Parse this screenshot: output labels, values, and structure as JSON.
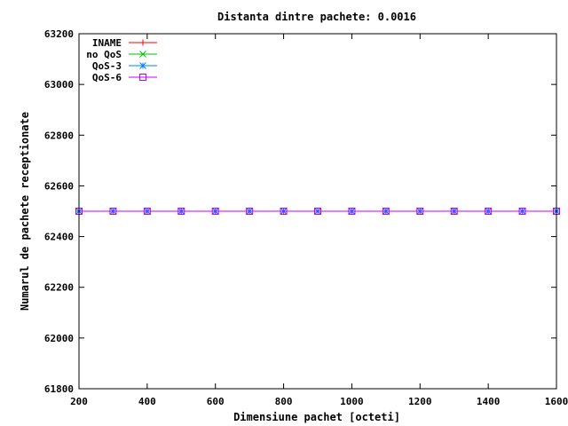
{
  "chart_data": {
    "type": "line",
    "title": "Distanta dintre pachete: 0.0016",
    "xlabel": "Dimensiune pachet [octeti]",
    "ylabel": "Numarul de pachete receptionate",
    "xlim": [
      200,
      1600
    ],
    "ylim": [
      61800,
      63200
    ],
    "xticks": [
      200,
      400,
      600,
      800,
      1000,
      1200,
      1400,
      1600
    ],
    "yticks": [
      61800,
      62000,
      62200,
      62400,
      62600,
      62800,
      63000,
      63200
    ],
    "grid": false,
    "legend_position": "top-left",
    "x": [
      200,
      300,
      400,
      500,
      600,
      700,
      800,
      900,
      1000,
      1100,
      1200,
      1300,
      1400,
      1500,
      1600
    ],
    "series": [
      {
        "name": "INAME",
        "color": "#ff0000",
        "marker": "plus",
        "values": [
          62500,
          62500,
          62500,
          62500,
          62500,
          62500,
          62500,
          62500,
          62500,
          62500,
          62500,
          62500,
          62500,
          62500,
          62500
        ]
      },
      {
        "name": "no QoS",
        "color": "#00c000",
        "marker": "cross",
        "values": [
          62500,
          62500,
          62500,
          62500,
          62500,
          62500,
          62500,
          62500,
          62500,
          62500,
          62500,
          62500,
          62500,
          62500,
          62500
        ]
      },
      {
        "name": "QoS-3",
        "color": "#0080ff",
        "marker": "star",
        "values": [
          62500,
          62500,
          62500,
          62500,
          62500,
          62500,
          62500,
          62500,
          62500,
          62500,
          62500,
          62500,
          62500,
          62500,
          62500
        ]
      },
      {
        "name": "QoS-6",
        "color": "#c000ff",
        "marker": "square",
        "values": [
          62500,
          62500,
          62500,
          62500,
          62500,
          62500,
          62500,
          62500,
          62500,
          62500,
          62500,
          62500,
          62500,
          62500,
          62500
        ]
      }
    ]
  }
}
